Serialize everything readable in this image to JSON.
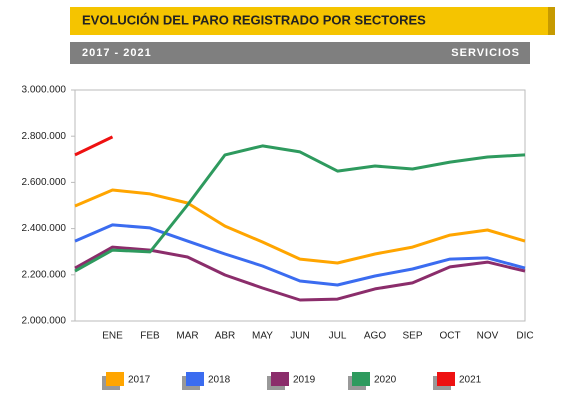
{
  "chart_data": {
    "type": "line",
    "title": "EVOLUCIÓN DEL PARO REGISTRADO POR SECTORES",
    "subtitle": "2017 - 2021",
    "sector": "SERVICIOS",
    "categories": [
      null,
      "ENE",
      "FEB",
      "MAR",
      "ABR",
      "MAY",
      "JUN",
      "JUL",
      "AGO",
      "SEP",
      "OCT",
      "NOV",
      "DIC"
    ],
    "ylim": [
      2000000,
      3000000
    ],
    "yticks": [
      {
        "value": 2000000,
        "label": "2.000.000"
      },
      {
        "value": 2200000,
        "label": "2.200.000"
      },
      {
        "value": 2400000,
        "label": "2.400.000"
      },
      {
        "value": 2600000,
        "label": "2.600.000"
      },
      {
        "value": 2800000,
        "label": "2.800.000"
      },
      {
        "value": 3000000,
        "label": "3.000.000"
      }
    ],
    "series": [
      {
        "name": "2017",
        "color": "#ffa500",
        "values": [
          2498000,
          2567000,
          2550000,
          2511000,
          2411000,
          2342000,
          2268000,
          2251000,
          2290000,
          2320000,
          2372000,
          2394000,
          2346000
        ]
      },
      {
        "name": "2018",
        "color": "#3b6cf0",
        "values": [
          2346000,
          2416000,
          2403000,
          2346000,
          2290000,
          2238000,
          2173000,
          2156000,
          2195000,
          2225000,
          2268000,
          2273000,
          2229000
        ]
      },
      {
        "name": "2019",
        "color": "#8b2d6b",
        "values": [
          2229000,
          2320000,
          2307000,
          2277000,
          2199000,
          2143000,
          2091000,
          2095000,
          2139000,
          2165000,
          2234000,
          2255000,
          2216000
        ]
      },
      {
        "name": "2020",
        "color": "#2e9a5e",
        "values": [
          2216000,
          2307000,
          2299000,
          2502000,
          2719000,
          2758000,
          2732000,
          2649000,
          2671000,
          2658000,
          2688000,
          2710000,
          2719000
        ]
      },
      {
        "name": "2021",
        "color": "#ee1111",
        "values": [
          2719000,
          2797000,
          null,
          null,
          null,
          null,
          null,
          null,
          null,
          null,
          null,
          null,
          null
        ]
      }
    ]
  }
}
